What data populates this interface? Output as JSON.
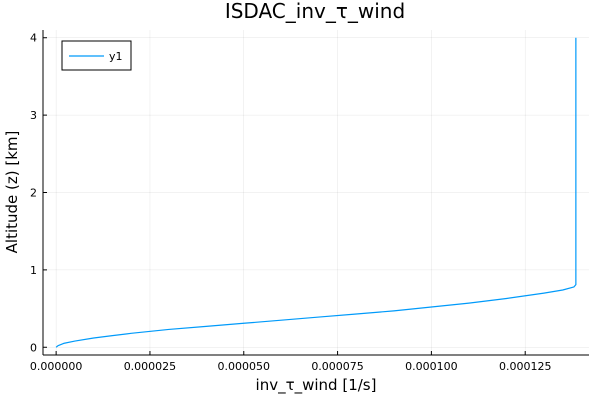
{
  "chart_data": {
    "type": "line",
    "title": "ISDAC_inv_τ_wind",
    "xlabel": "inv_τ_wind [1/s]",
    "ylabel": "Altitude (z) [km]",
    "xlim": [
      -3.5e-06,
      0.000142
    ],
    "ylim": [
      -0.1,
      4.1
    ],
    "x_ticks": [
      0,
      2.5e-05,
      5e-05,
      7.5e-05,
      0.0001,
      0.000125
    ],
    "x_tick_labels": [
      "0.000000",
      "0.000025",
      "0.000050",
      "0.000075",
      "0.000100",
      "0.000125"
    ],
    "y_ticks": [
      0,
      1,
      2,
      3,
      4
    ],
    "y_tick_labels": [
      "0",
      "1",
      "2",
      "3",
      "4"
    ],
    "grid": true,
    "legend_position": "top-left",
    "line_color": "#009AFA",
    "series": [
      {
        "name": "y1",
        "points": [
          [
            0,
            0
          ],
          [
            5e-07,
            0.02
          ],
          [
            2e-06,
            0.05
          ],
          [
            5e-06,
            0.08
          ],
          [
            1e-05,
            0.12
          ],
          [
            1.5e-05,
            0.15
          ],
          [
            2e-05,
            0.18
          ],
          [
            3e-05,
            0.23
          ],
          [
            4e-05,
            0.27
          ],
          [
            5e-05,
            0.31
          ],
          [
            6e-05,
            0.35
          ],
          [
            7e-05,
            0.39
          ],
          [
            8e-05,
            0.43
          ],
          [
            9e-05,
            0.47
          ],
          [
            0.0001,
            0.52
          ],
          [
            0.00011,
            0.57
          ],
          [
            0.00012,
            0.63
          ],
          [
            0.00013,
            0.7
          ],
          [
            0.000135,
            0.74
          ],
          [
            0.000138,
            0.78
          ],
          [
            0.0001385,
            0.81
          ],
          [
            0.0001385,
            2.0
          ],
          [
            0.0001385,
            3.0
          ],
          [
            0.0001385,
            4.0
          ]
        ]
      }
    ]
  }
}
